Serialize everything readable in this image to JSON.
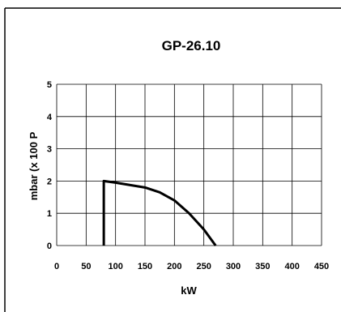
{
  "chart_data": {
    "type": "line",
    "title": "GP-26.10",
    "xlabel": "kW",
    "ylabel": "mbar (x 100 P",
    "xlim": [
      0,
      450
    ],
    "ylim": [
      0,
      5
    ],
    "x_ticks": [
      "0",
      "50",
      "100",
      "150",
      "200",
      "250",
      "300",
      "350",
      "400",
      "450"
    ],
    "y_ticks": [
      "0",
      "1",
      "2",
      "3",
      "4",
      "5"
    ],
    "grid": true,
    "legend": "none",
    "series": [
      {
        "x": [
          80,
          80,
          100,
          150,
          175,
          200,
          225,
          250,
          270
        ],
        "y": [
          0,
          2.0,
          1.95,
          1.8,
          1.65,
          1.4,
          1.0,
          0.5,
          0
        ],
        "color": "#000000"
      }
    ]
  }
}
